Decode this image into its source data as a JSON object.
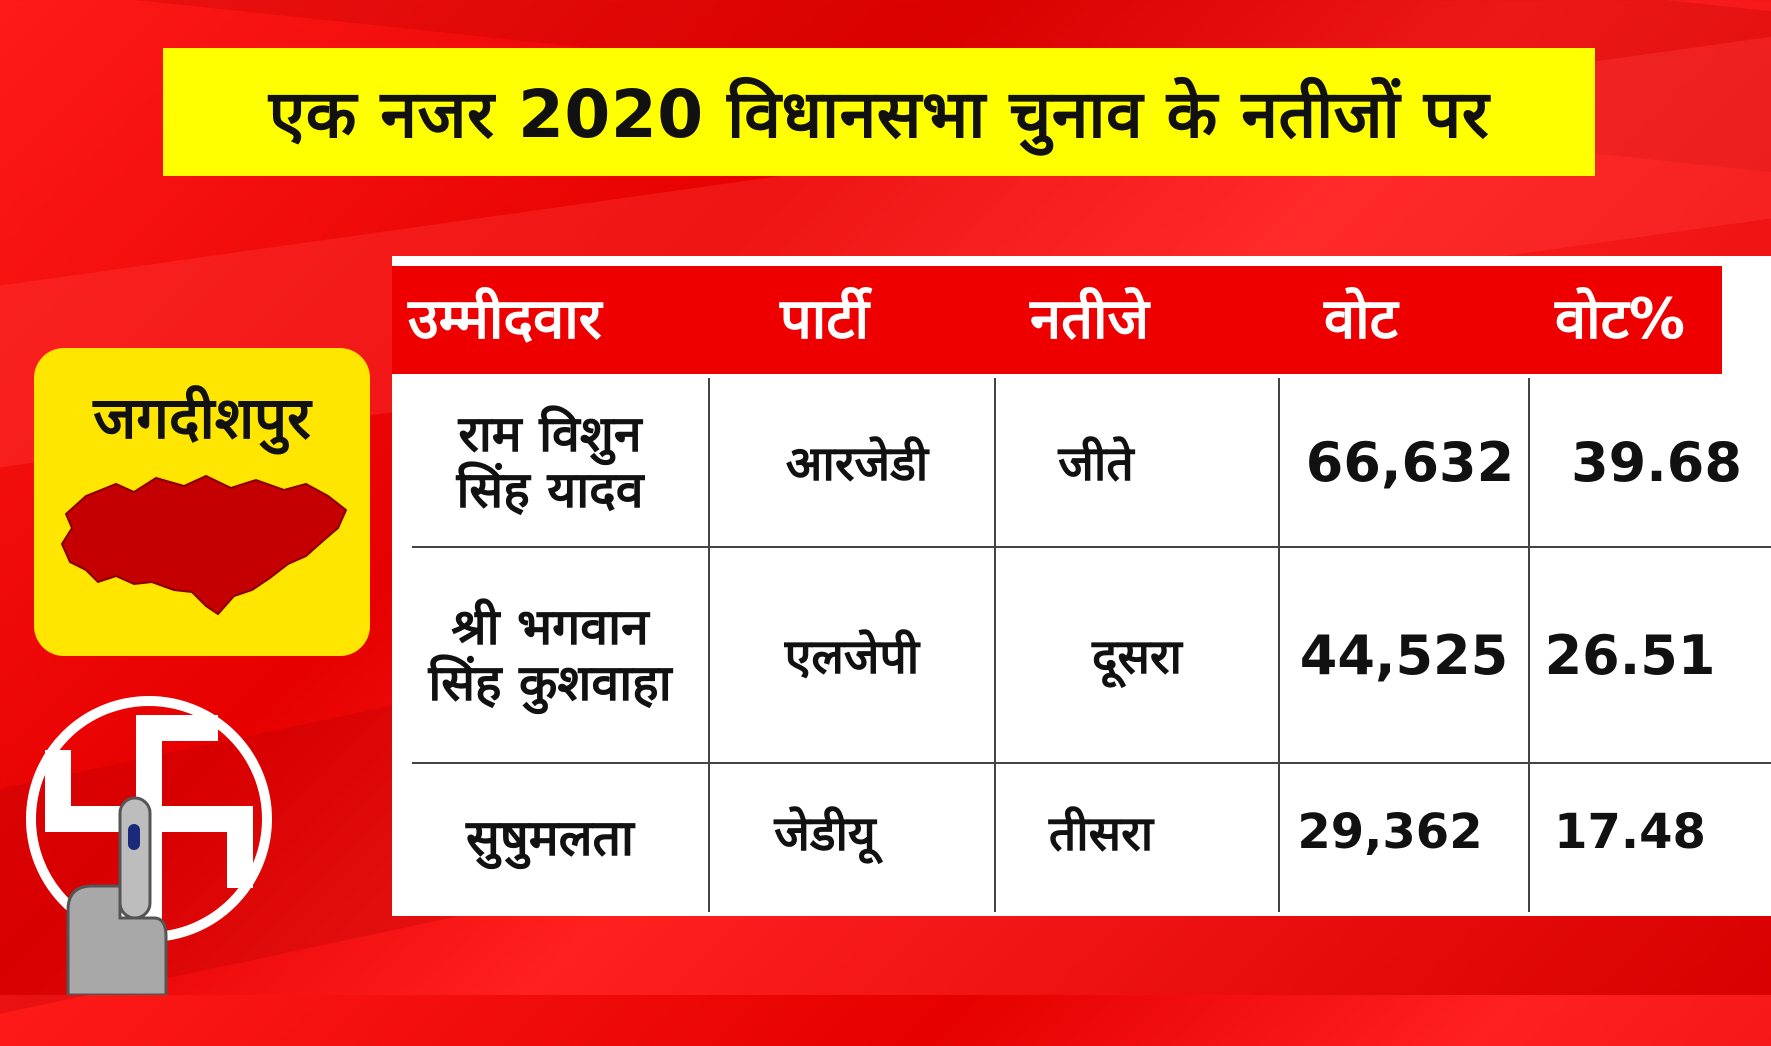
{
  "title": "एक नजर 2020 विधानसभा चुनाव के नतीजों पर",
  "constituency": "जगदीशपुर",
  "table": {
    "headers": [
      "उम्मीदवार",
      "पार्टी",
      "नतीजे",
      "वोट",
      "वोट%"
    ],
    "rows": [
      {
        "name_line1": "राम विशुन",
        "name_line2": "सिंह यादव",
        "party": "आरजेडी",
        "result": "जीते",
        "votes": "66,632",
        "vote_pct": "39.68"
      },
      {
        "name_line1": "श्री भगवान",
        "name_line2": "सिंह कुशवाहा",
        "party": "एलजेपी",
        "result": "दूसरा",
        "votes": "44,525",
        "vote_pct": "26.51"
      },
      {
        "name_line1": "सुषुमलता",
        "name_line2": "",
        "party": "जेडीयू",
        "result": "तीसरा",
        "votes": "29,362",
        "vote_pct": "17.48"
      }
    ]
  },
  "colors": {
    "background": "#e60000",
    "banner": "#ffff00",
    "badge": "#ffe600",
    "header_row": "#ee0000",
    "map": "#c40000"
  },
  "icons": {
    "map": "constituency-map-icon",
    "symbol": "election-swastika-symbol-icon",
    "finger": "inked-finger-icon"
  }
}
